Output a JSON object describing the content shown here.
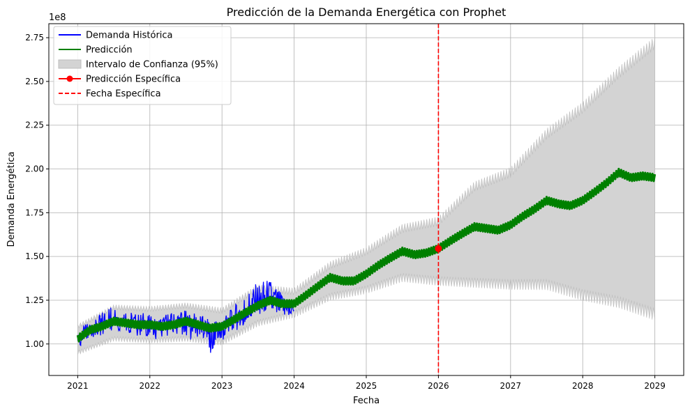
{
  "chart_data": {
    "type": "line",
    "title": "Predicción de la Demanda Energética con Prophet",
    "xlabel": "Fecha",
    "ylabel": "Demanda Energética",
    "y_offset_text": "1e8",
    "xlim": [
      2020.6,
      2029.4
    ],
    "ylim": [
      0.82,
      2.83
    ],
    "grid": true,
    "legend_position": "upper left",
    "x_ticks": [
      2021,
      2022,
      2023,
      2024,
      2025,
      2026,
      2027,
      2028,
      2029
    ],
    "x_tick_labels": [
      "2021",
      "2022",
      "2023",
      "2024",
      "2025",
      "2026",
      "2027",
      "2028",
      "2029"
    ],
    "y_ticks": [
      1.0,
      1.25,
      1.5,
      1.75,
      2.0,
      2.25,
      2.5,
      2.75
    ],
    "y_tick_labels": [
      "1.00",
      "1.25",
      "1.50",
      "1.75",
      "2.00",
      "2.25",
      "2.50",
      "2.75"
    ],
    "specific_date": 2026.0,
    "specific_prediction": {
      "x": 2026.0,
      "y": 1.545
    },
    "colors": {
      "historical": "#0000ff",
      "prediction": "#008000",
      "interval": "#d3d3d3",
      "interval_edge": "#bcbcbc",
      "specific": "#ff0000",
      "grid": "#b0b0b0"
    },
    "legend": [
      {
        "label": "Demanda Histórica",
        "kind": "line",
        "color": "#0000ff"
      },
      {
        "label": "Predicción",
        "kind": "line",
        "color": "#008000"
      },
      {
        "label": "Intervalo de Confianza (95%)",
        "kind": "patch",
        "color": "#d3d3d3"
      },
      {
        "label": "Predicción Específica",
        "kind": "marker",
        "color": "#ff0000"
      },
      {
        "label": "Fecha Específica",
        "kind": "dashed",
        "color": "#ff0000"
      }
    ],
    "series": [
      {
        "name": "Demanda Histórica",
        "x": [
          2021.0,
          2021.08,
          2021.17,
          2021.25,
          2021.33,
          2021.42,
          2021.5,
          2021.58,
          2021.67,
          2021.75,
          2021.83,
          2021.92,
          2022.0,
          2022.08,
          2022.17,
          2022.25,
          2022.33,
          2022.42,
          2022.5,
          2022.58,
          2022.67,
          2022.75,
          2022.83,
          2022.92,
          2023.0,
          2023.08,
          2023.17,
          2023.25,
          2023.33,
          2023.42,
          2023.5,
          2023.58,
          2023.67,
          2023.75,
          2023.83,
          2023.92,
          2024.0
        ],
        "y": [
          1.02,
          1.07,
          1.09,
          1.1,
          1.11,
          1.14,
          1.15,
          1.13,
          1.14,
          1.12,
          1.11,
          1.12,
          1.1,
          1.09,
          1.1,
          1.11,
          1.11,
          1.13,
          1.12,
          1.1,
          1.12,
          1.1,
          1.08,
          1.09,
          1.1,
          1.12,
          1.14,
          1.17,
          1.2,
          1.22,
          1.24,
          1.25,
          1.26,
          1.25,
          1.23,
          1.22,
          1.21
        ],
        "y_low": [
          0.94,
          1.0,
          1.02,
          1.03,
          1.03,
          1.05,
          1.06,
          1.04,
          1.05,
          1.04,
          1.03,
          1.04,
          1.02,
          1.0,
          1.02,
          1.03,
          1.03,
          1.04,
          1.03,
          0.99,
          1.02,
          1.0,
          0.9,
          1.0,
          1.0,
          1.02,
          1.05,
          1.07,
          1.1,
          1.12,
          1.14,
          1.16,
          1.17,
          1.14,
          1.15,
          1.14,
          1.18
        ],
        "y_high": [
          1.06,
          1.11,
          1.14,
          1.15,
          1.2,
          1.26,
          1.24,
          1.25,
          1.23,
          1.2,
          1.19,
          1.2,
          1.18,
          1.16,
          1.18,
          1.2,
          1.2,
          1.22,
          1.21,
          1.19,
          1.2,
          1.17,
          1.15,
          1.16,
          1.16,
          1.19,
          1.24,
          1.28,
          1.32,
          1.36,
          1.38,
          1.4,
          1.4,
          1.35,
          1.3,
          1.26,
          1.24
        ]
      },
      {
        "name": "Predicción",
        "x": [
          2021.0,
          2021.17,
          2021.33,
          2021.5,
          2021.67,
          2021.83,
          2022.0,
          2022.17,
          2022.33,
          2022.5,
          2022.67,
          2022.83,
          2023.0,
          2023.17,
          2023.33,
          2023.5,
          2023.67,
          2023.83,
          2024.0,
          2024.17,
          2024.33,
          2024.5,
          2024.67,
          2024.83,
          2025.0,
          2025.17,
          2025.33,
          2025.5,
          2025.67,
          2025.83,
          2026.0,
          2026.17,
          2026.33,
          2026.5,
          2026.67,
          2026.83,
          2027.0,
          2027.17,
          2027.33,
          2027.5,
          2027.67,
          2027.83,
          2028.0,
          2028.17,
          2028.33,
          2028.5,
          2028.67,
          2028.83,
          2029.0
        ],
        "y": [
          1.03,
          1.08,
          1.1,
          1.13,
          1.12,
          1.11,
          1.11,
          1.1,
          1.11,
          1.13,
          1.11,
          1.09,
          1.1,
          1.14,
          1.18,
          1.22,
          1.25,
          1.23,
          1.23,
          1.28,
          1.33,
          1.38,
          1.36,
          1.36,
          1.4,
          1.45,
          1.49,
          1.53,
          1.51,
          1.52,
          1.545,
          1.59,
          1.63,
          1.67,
          1.66,
          1.65,
          1.68,
          1.73,
          1.77,
          1.82,
          1.8,
          1.79,
          1.82,
          1.87,
          1.92,
          1.98,
          1.95,
          1.96,
          1.95
        ],
        "band": 0.04
      }
    ],
    "interval": {
      "x": [
        2021.0,
        2021.5,
        2022.0,
        2022.5,
        2023.0,
        2023.5,
        2024.0,
        2024.5,
        2025.0,
        2025.5,
        2026.0,
        2026.5,
        2027.0,
        2027.5,
        2028.0,
        2028.5,
        2029.0
      ],
      "lower": [
        0.95,
        1.03,
        1.02,
        1.03,
        1.01,
        1.12,
        1.17,
        1.27,
        1.31,
        1.38,
        1.36,
        1.35,
        1.34,
        1.34,
        1.28,
        1.24,
        1.17
      ],
      "upper": [
        1.1,
        1.21,
        1.2,
        1.22,
        1.19,
        1.32,
        1.3,
        1.45,
        1.53,
        1.66,
        1.7,
        1.9,
        1.98,
        2.2,
        2.35,
        2.55,
        2.72
      ]
    }
  }
}
